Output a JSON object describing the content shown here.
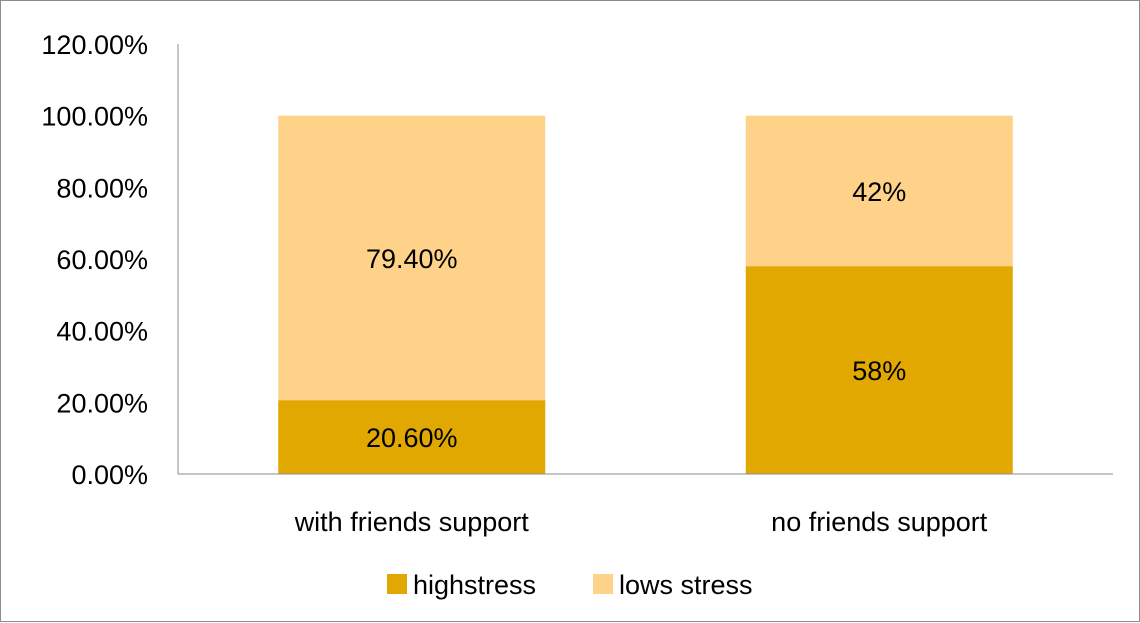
{
  "chart_data": {
    "type": "bar",
    "stacked": true,
    "categories": [
      "with friends support",
      "no friends support"
    ],
    "series": [
      {
        "name": "highstress",
        "values": [
          20.6,
          58
        ],
        "labels": [
          "20.60%",
          "58%"
        ],
        "color": "#E0A800"
      },
      {
        "name": "lows stress",
        "values": [
          79.4,
          42
        ],
        "labels": [
          "79.40%",
          "42%"
        ],
        "color": "#FFD28A"
      }
    ],
    "ylim": [
      0,
      120
    ],
    "yticks": [
      0,
      20,
      40,
      60,
      80,
      100,
      120
    ],
    "ytick_labels": [
      "0.00%",
      "20.00%",
      "40.00%",
      "60.00%",
      "80.00%",
      "100.00%",
      "120.00%"
    ],
    "title": "",
    "xlabel": "",
    "ylabel": "",
    "grid": false,
    "legend": "bottom"
  }
}
